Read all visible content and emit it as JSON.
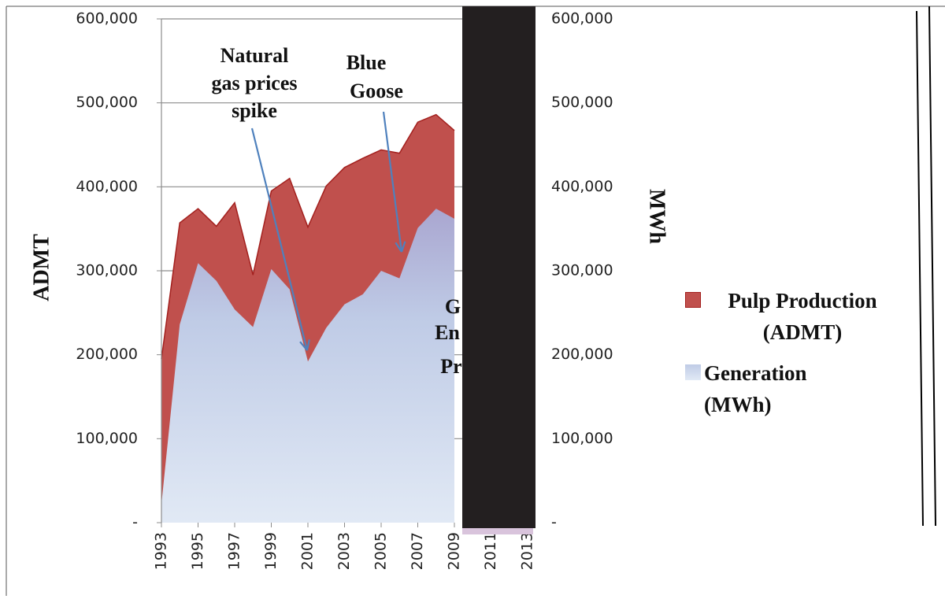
{
  "chart_data": {
    "type": "area",
    "x": [
      1993,
      1994,
      1995,
      1996,
      1997,
      1998,
      1999,
      2000,
      2001,
      2002,
      2003,
      2004,
      2005,
      2006,
      2007,
      2008,
      2009,
      2010,
      2011,
      2012,
      2013
    ],
    "xlim": [
      1993,
      2013
    ],
    "xticks": [
      1993,
      1995,
      1997,
      1999,
      2001,
      2003,
      2005,
      2007,
      2009,
      2011,
      2013
    ],
    "ylim": [
      0,
      600000
    ],
    "yticks": [
      {
        "value": 0,
        "label": "-"
      },
      {
        "value": 100000,
        "label": "100,000"
      },
      {
        "value": 200000,
        "label": "200,000"
      },
      {
        "value": 300000,
        "label": "300,000"
      },
      {
        "value": 400000,
        "label": "400,000"
      },
      {
        "value": 500000,
        "label": "500,000"
      },
      {
        "value": 600000,
        "label": "600,000"
      }
    ],
    "y2lim": [
      0,
      600000
    ],
    "y2ticks": [
      {
        "value": 0,
        "label": "-"
      },
      {
        "value": 100000,
        "label": "100,000"
      },
      {
        "value": 200000,
        "label": "200,000"
      },
      {
        "value": 300000,
        "label": "300,000"
      },
      {
        "value": 400000,
        "label": "400,000"
      },
      {
        "value": 500000,
        "label": "500,000"
      },
      {
        "value": 600000,
        "label": "600,000"
      }
    ],
    "ylabel": "ADMT",
    "y2label": "MWh",
    "grid": true,
    "series": [
      {
        "name": "Pulp Production (ADMT)",
        "color": "#c0504d",
        "values": [
          195000,
          357000,
          374000,
          353000,
          381000,
          295000,
          395000,
          410000,
          352000,
          401000,
          423000,
          434000,
          444000,
          440000,
          477000,
          486000,
          467000,
          null,
          null,
          null,
          null
        ]
      },
      {
        "name": "Generation (MWh)",
        "color": "#b9c9e6",
        "axis": "y2",
        "values": [
          22000,
          236000,
          309000,
          288000,
          254000,
          233000,
          302000,
          278000,
          192000,
          232000,
          260000,
          272000,
          300000,
          291000,
          351000,
          374000,
          362000,
          null,
          null,
          null,
          null
        ]
      }
    ],
    "annotations": [
      "Natural",
      "gas prices",
      "spike",
      "Blue",
      "Goose",
      "G",
      "En",
      "Pr"
    ]
  }
}
